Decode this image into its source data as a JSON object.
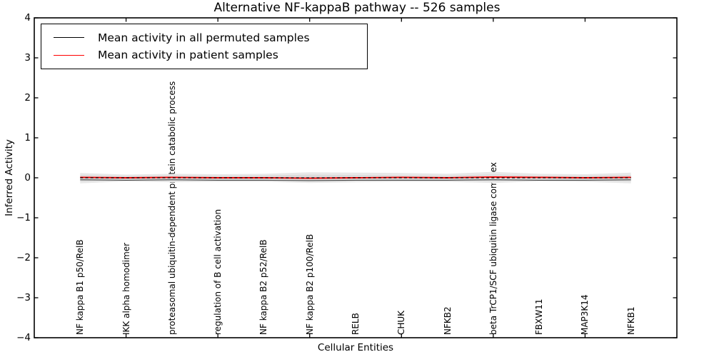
{
  "figure": {
    "background": "#ffffff"
  },
  "legend": {
    "entries": [
      {
        "label": "Mean activity in all permuted samples",
        "color": "#000000"
      },
      {
        "label": "Mean activity in patient samples",
        "color": "#ff0000"
      }
    ]
  },
  "chart_data": {
    "type": "line",
    "title": "Alternative NF-kappaB pathway -- 526 samples",
    "xlabel": "Cellular Entities",
    "ylabel": "Inferred Activity",
    "ylim": [
      -4,
      4
    ],
    "x_range": [
      0,
      14
    ],
    "grid": false,
    "legend_position": "upper-left",
    "yticks": [
      4,
      3,
      2,
      1,
      0,
      -1,
      -2,
      -3,
      -4
    ],
    "ytick_labels": [
      "4",
      "3",
      "2",
      "1",
      "0",
      "−1",
      "−2",
      "−3",
      "−4"
    ],
    "x_axis_tick_units": [
      2,
      4,
      6,
      8,
      10,
      12
    ],
    "categories": [
      "NF kappa B1 p50/RelB",
      "IKK alpha homodimer",
      "proteasomal ubiquitin-dependent protein catabolic process",
      "regulation of B cell activation",
      "NF kappa B2 p52/RelB",
      "NF kappa B2 p100/RelB",
      "RELB",
      "CHUK",
      "NFKB2",
      "beta TrCP1/SCF ubiquitin ligase complex",
      "FBXW11",
      "MAP3K14",
      "NFKB1"
    ],
    "series": [
      {
        "name": "Mean activity in all permuted samples",
        "color": "#444444",
        "style": "solid",
        "values": [
          -0.05,
          -0.06,
          -0.05,
          -0.06,
          -0.06,
          -0.07,
          -0.06,
          -0.06,
          -0.06,
          -0.05,
          -0.06,
          -0.06,
          -0.05
        ]
      },
      {
        "name": "Mean activity in patient samples",
        "color": "#ff0000",
        "style": "solid",
        "values": [
          0.01,
          0.0,
          0.01,
          0.0,
          0.0,
          -0.01,
          0.0,
          0.01,
          0.0,
          0.02,
          0.01,
          0.0,
          0.01
        ]
      },
      {
        "name": "dashed zero reference",
        "color": "#000000",
        "style": "dashed",
        "values": [
          0.0,
          0.0,
          0.0,
          0.0,
          0.0,
          0.0,
          0.0,
          0.0,
          0.0,
          0.0,
          0.0,
          0.0,
          0.0
        ]
      }
    ],
    "bands": [
      {
        "name": "outer-std-band",
        "color": "#e8e8e8",
        "upper": [
          0.12,
          0.08,
          0.1,
          0.09,
          0.1,
          0.14,
          0.13,
          0.12,
          0.1,
          0.15,
          0.1,
          0.09,
          0.13
        ],
        "lower": [
          -0.14,
          -0.09,
          -0.11,
          -0.1,
          -0.1,
          -0.13,
          -0.11,
          -0.1,
          -0.1,
          -0.13,
          -0.09,
          -0.1,
          -0.14
        ]
      },
      {
        "name": "inner-std-band",
        "color": "#dcdcdc",
        "upper": [
          0.07,
          0.04,
          0.06,
          0.05,
          0.06,
          0.08,
          0.07,
          0.06,
          0.05,
          0.09,
          0.05,
          0.05,
          0.07
        ],
        "lower": [
          -0.09,
          -0.05,
          -0.07,
          -0.06,
          -0.06,
          -0.08,
          -0.07,
          -0.06,
          -0.06,
          -0.08,
          -0.05,
          -0.06,
          -0.09
        ]
      }
    ]
  }
}
